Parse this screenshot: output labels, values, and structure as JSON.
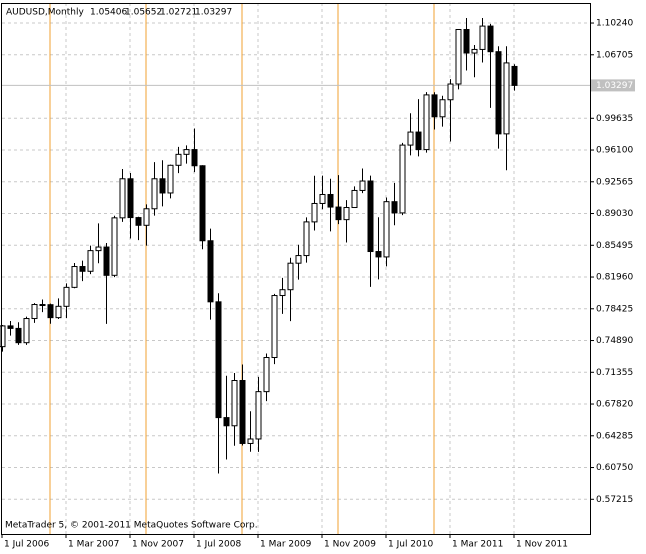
{
  "chart_data": {
    "type": "candlestick",
    "title": "AUDUSD,Monthly",
    "footer": "MetaTrader 5, © 2001-2011 MetaQuotes Software Corp.",
    "categories": [
      "1 Jul 2006",
      null,
      null,
      null,
      null,
      null,
      null,
      null,
      "1 Mar 2007",
      null,
      null,
      null,
      null,
      null,
      null,
      null,
      "1 Nov 2007",
      null,
      null,
      null,
      null,
      null,
      null,
      null,
      "1 Jul 2008",
      null,
      null,
      null,
      null,
      null,
      null,
      null,
      "1 Mar 2009",
      null,
      null,
      null,
      null,
      null,
      null,
      null,
      "1 Nov 2009",
      null,
      null,
      null,
      null,
      null,
      null,
      null,
      "1 Jul 2010",
      null,
      null,
      null,
      null,
      null,
      null,
      null,
      "1 Mar 2011",
      null,
      null,
      null,
      null,
      null,
      null,
      null,
      "1 Nov 2011"
    ],
    "open": [
      0.7421,
      0.7652,
      0.7624,
      0.7465,
      0.7734,
      0.789,
      0.7888,
      0.7744,
      0.787,
      0.8081,
      0.8313,
      0.826,
      0.849,
      0.853,
      0.8215,
      0.8855,
      0.929,
      0.8858,
      0.8772,
      0.8956,
      0.929,
      0.9132,
      0.944,
      0.9562,
      0.9615,
      0.9435,
      0.86,
      0.792,
      0.6631,
      0.654,
      0.7044,
      0.6343,
      0.6393,
      0.692,
      0.73,
      0.799,
      0.8055,
      0.835,
      0.8435,
      0.881,
      0.9015,
      0.9115,
      0.8975,
      0.8835,
      0.897,
      0.916,
      0.9265,
      0.848,
      0.842,
      0.9035,
      0.891,
      0.9665,
      0.981,
      0.9615,
      1.0224,
      0.998,
      1.017,
      1.0345,
      1.0952,
      1.069,
      1.073,
      1.099,
      1.0705,
      0.979,
      1.05406
    ],
    "high": [
      0.7662,
      0.7707,
      0.7693,
      0.7755,
      0.7905,
      0.7946,
      0.79,
      0.7959,
      0.8126,
      0.8352,
      0.8379,
      0.8545,
      0.8793,
      0.8575,
      0.8878,
      0.9399,
      0.9354,
      0.8867,
      0.9005,
      0.9475,
      0.9496,
      0.9447,
      0.9645,
      0.9662,
      0.985,
      0.944,
      0.8735,
      0.8016,
      0.7097,
      0.7128,
      0.7222,
      0.6701,
      0.7085,
      0.7345,
      0.8008,
      0.8187,
      0.841,
      0.8555,
      0.886,
      0.9324,
      0.9325,
      0.929,
      0.933,
      0.9052,
      0.9205,
      0.9405,
      0.9325,
      0.8862,
      0.9082,
      0.9245,
      0.9689,
      1.002,
      1.0177,
      1.0255,
      1.0254,
      1.0215,
      1.04,
      1.0958,
      1.108,
      1.078,
      1.108,
      1.1015,
      1.0765,
      1.0765,
      1.05652
    ],
    "low": [
      0.7366,
      0.7543,
      0.744,
      0.744,
      0.7685,
      0.7805,
      0.7676,
      0.7729,
      0.7738,
      0.8071,
      0.815,
      0.8228,
      0.835,
      0.7675,
      0.8195,
      0.881,
      0.8625,
      0.8607,
      0.8545,
      0.888,
      0.8982,
      0.9072,
      0.9353,
      0.9459,
      0.9364,
      0.8505,
      0.7722,
      0.6008,
      0.6165,
      0.6317,
      0.632,
      0.6251,
      0.6249,
      0.6815,
      0.7227,
      0.7786,
      0.7705,
      0.8167,
      0.8356,
      0.8714,
      0.895,
      0.8705,
      0.8785,
      0.858,
      0.8964,
      0.913,
      0.8086,
      0.817,
      0.8315,
      0.8772,
      0.8885,
      0.955,
      0.9539,
      0.9581,
      0.9838,
      0.987,
      0.9705,
      1.0285,
      1.0495,
      1.042,
      1.0585,
      1.008,
      0.9625,
      0.9385,
      1.02721
    ],
    "close": [
      0.7652,
      0.7624,
      0.7465,
      0.7734,
      0.789,
      0.7888,
      0.7744,
      0.787,
      0.8081,
      0.8313,
      0.826,
      0.849,
      0.853,
      0.8215,
      0.8855,
      0.929,
      0.8858,
      0.8772,
      0.8956,
      0.929,
      0.9132,
      0.944,
      0.9562,
      0.9615,
      0.9435,
      0.86,
      0.792,
      0.6631,
      0.654,
      0.7044,
      0.6343,
      0.6393,
      0.692,
      0.73,
      0.799,
      0.8055,
      0.835,
      0.8435,
      0.881,
      0.9015,
      0.9115,
      0.8975,
      0.8835,
      0.897,
      0.916,
      0.9265,
      0.848,
      0.842,
      0.9035,
      0.891,
      0.9665,
      0.981,
      0.9615,
      1.0224,
      0.998,
      1.017,
      1.0345,
      1.0952,
      1.069,
      1.073,
      1.099,
      1.0705,
      0.979,
      1.058,
      1.03297
    ],
    "up_color": "#ffffff",
    "down_color": "#000000",
    "outline_color": "#000000",
    "separator_color": "#f0a030",
    "grid": true,
    "ylim": [
      0.5335,
      1.1247
    ],
    "yticks": [
      {
        "value": 1.1024,
        "label": "1.10240"
      },
      1.06705,
      0.99635,
      {
        "value": 0.961,
        "label": "0.96100"
      },
      0.92565,
      {
        "value": 0.8903,
        "label": "0.89030"
      },
      0.85495,
      {
        "value": 0.8196,
        "label": "0.81960"
      },
      0.78425,
      {
        "value": 0.7489,
        "label": "0.74890"
      },
      0.71355,
      {
        "value": 0.6782,
        "label": "0.67820"
      },
      0.64285,
      {
        "value": 0.6075,
        "label": "0.60750"
      },
      0.57215
    ]
  }
}
